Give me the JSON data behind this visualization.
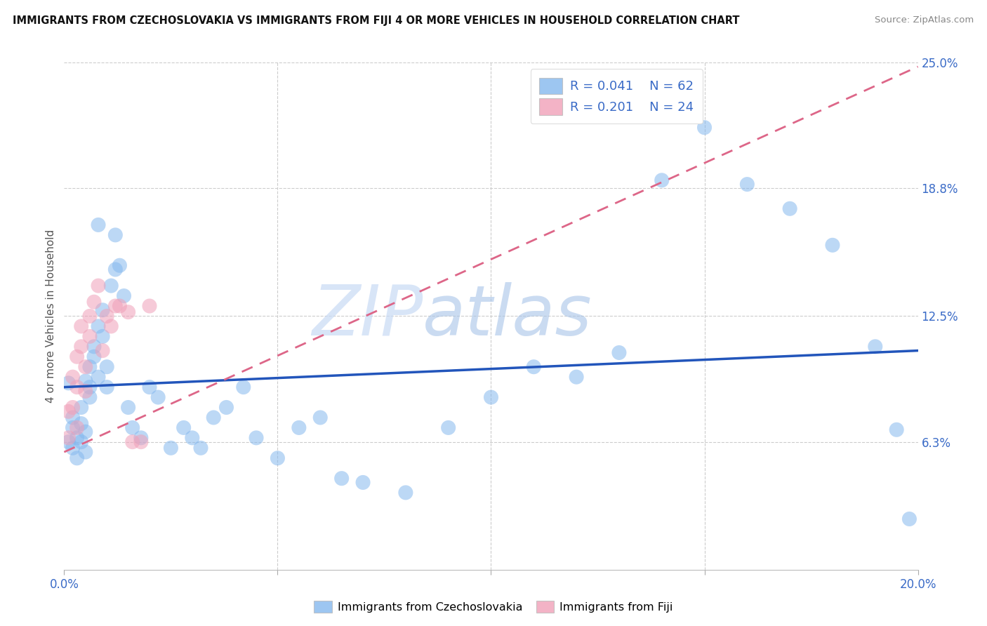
{
  "title": "IMMIGRANTS FROM CZECHOSLOVAKIA VS IMMIGRANTS FROM FIJI 4 OR MORE VEHICLES IN HOUSEHOLD CORRELATION CHART",
  "source": "Source: ZipAtlas.com",
  "ylabel": "4 or more Vehicles in Household",
  "xlim": [
    0.0,
    0.2
  ],
  "ylim": [
    0.0,
    0.25
  ],
  "ytick_values": [
    0.063,
    0.125,
    0.188,
    0.25
  ],
  "ytick_labels": [
    "6.3%",
    "12.5%",
    "18.8%",
    "25.0%"
  ],
  "grid_color": "#cccccc",
  "background_color": "#ffffff",
  "legend1_R": "0.041",
  "legend1_N": "62",
  "legend2_R": "0.201",
  "legend2_N": "24",
  "scatter_czech_color": "#85b8ee",
  "scatter_fiji_color": "#f0a0b8",
  "line_czech_color": "#2255bb",
  "line_fiji_color": "#dd6688",
  "watermark_zip": "ZIP",
  "watermark_atlas": "atlas",
  "czech_line_y0": 0.09,
  "czech_line_y1": 0.108,
  "fiji_line_y0": 0.058,
  "fiji_line_y1": 0.248,
  "czech_x": [
    0.001,
    0.001,
    0.002,
    0.002,
    0.002,
    0.003,
    0.003,
    0.004,
    0.004,
    0.004,
    0.005,
    0.005,
    0.005,
    0.006,
    0.006,
    0.006,
    0.007,
    0.007,
    0.008,
    0.008,
    0.009,
    0.009,
    0.01,
    0.01,
    0.011,
    0.012,
    0.013,
    0.014,
    0.015,
    0.016,
    0.018,
    0.02,
    0.022,
    0.025,
    0.028,
    0.03,
    0.032,
    0.035,
    0.038,
    0.042,
    0.045,
    0.05,
    0.055,
    0.06,
    0.065,
    0.07,
    0.08,
    0.09,
    0.1,
    0.11,
    0.12,
    0.13,
    0.14,
    0.15,
    0.16,
    0.17,
    0.18,
    0.19,
    0.195,
    0.198,
    0.012,
    0.008
  ],
  "czech_y": [
    0.092,
    0.063,
    0.07,
    0.06,
    0.075,
    0.065,
    0.055,
    0.063,
    0.072,
    0.08,
    0.058,
    0.068,
    0.093,
    0.09,
    0.1,
    0.085,
    0.105,
    0.11,
    0.12,
    0.095,
    0.128,
    0.115,
    0.1,
    0.09,
    0.14,
    0.148,
    0.15,
    0.135,
    0.08,
    0.07,
    0.065,
    0.09,
    0.085,
    0.06,
    0.07,
    0.065,
    0.06,
    0.075,
    0.08,
    0.09,
    0.065,
    0.055,
    0.07,
    0.075,
    0.045,
    0.043,
    0.038,
    0.07,
    0.085,
    0.1,
    0.095,
    0.107,
    0.192,
    0.218,
    0.19,
    0.178,
    0.16,
    0.11,
    0.069,
    0.025,
    0.165,
    0.17
  ],
  "fiji_x": [
    0.001,
    0.001,
    0.002,
    0.002,
    0.003,
    0.003,
    0.003,
    0.004,
    0.004,
    0.005,
    0.005,
    0.006,
    0.006,
    0.007,
    0.008,
    0.009,
    0.01,
    0.011,
    0.012,
    0.013,
    0.015,
    0.016,
    0.018,
    0.02
  ],
  "fiji_y": [
    0.065,
    0.078,
    0.08,
    0.095,
    0.07,
    0.09,
    0.105,
    0.11,
    0.12,
    0.088,
    0.1,
    0.125,
    0.115,
    0.132,
    0.14,
    0.108,
    0.125,
    0.12,
    0.13,
    0.13,
    0.127,
    0.063,
    0.063,
    0.13
  ]
}
